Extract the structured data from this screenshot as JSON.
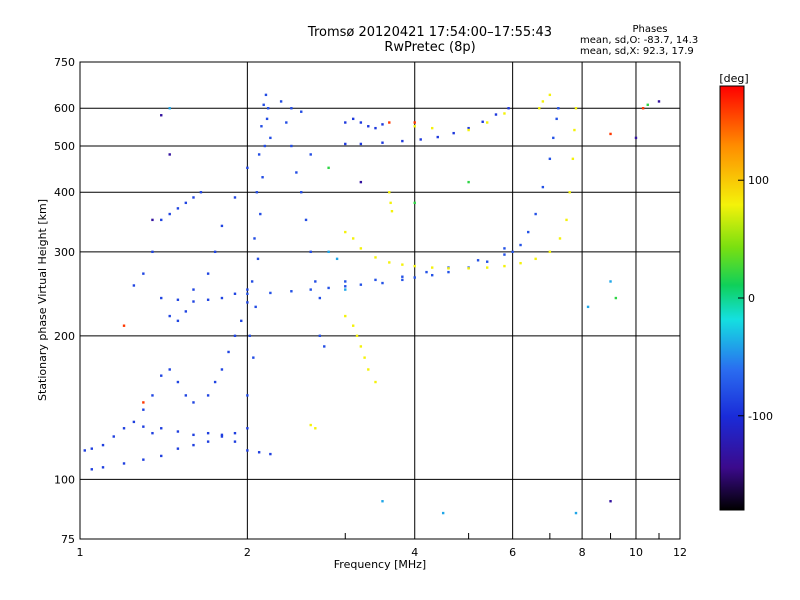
{
  "header": {
    "title_line1": "Tromsø 20120421 17:54:00–17:55:43",
    "title_line2": "RwPretec (8p)"
  },
  "phases": {
    "heading": "Phases",
    "line_o": "mean, sd,O:  -83.7, 14.3",
    "line_x": "mean, sd,X:  92.3, 17.9"
  },
  "colorbar": {
    "unit_label": "[deg]",
    "ticks": [
      100,
      0,
      -100
    ],
    "range": [
      -180,
      180
    ]
  },
  "chart_data": {
    "type": "scatter",
    "xlabel": "Frequency [MHz]",
    "ylabel": "Stationary phase Virtual Height [km]",
    "xscale": "log",
    "yscale": "log",
    "xlim": [
      1,
      12
    ],
    "ylim": [
      75,
      750
    ],
    "xticks": [
      1,
      2,
      4,
      6,
      8,
      10,
      12
    ],
    "yticks": [
      75,
      100,
      200,
      300,
      400,
      500,
      600,
      750
    ],
    "grid": true,
    "series": [
      {
        "color_value": -95,
        "points": [
          [
            1.02,
            115
          ],
          [
            1.05,
            116
          ],
          [
            1.1,
            118
          ],
          [
            1.15,
            123
          ],
          [
            1.2,
            128
          ],
          [
            1.25,
            132
          ],
          [
            1.3,
            129
          ],
          [
            1.35,
            125
          ],
          [
            1.4,
            128
          ],
          [
            1.5,
            126
          ],
          [
            1.6,
            124
          ],
          [
            1.7,
            125
          ],
          [
            1.8,
            124
          ],
          [
            1.9,
            120
          ],
          [
            2.0,
            115
          ],
          [
            2.1,
            114
          ],
          [
            2.2,
            113
          ],
          [
            1.05,
            105
          ],
          [
            1.1,
            106
          ],
          [
            1.2,
            108
          ],
          [
            1.3,
            110
          ],
          [
            1.4,
            112
          ],
          [
            1.5,
            116
          ],
          [
            1.6,
            118
          ],
          [
            1.7,
            120
          ],
          [
            1.8,
            123
          ],
          [
            1.9,
            125
          ],
          [
            2.0,
            128
          ]
        ]
      },
      {
        "color_value": -90,
        "points": [
          [
            1.3,
            140
          ],
          [
            1.35,
            150
          ],
          [
            1.4,
            165
          ],
          [
            1.45,
            170
          ],
          [
            1.5,
            160
          ],
          [
            1.55,
            150
          ],
          [
            1.6,
            145
          ],
          [
            1.7,
            150
          ],
          [
            1.75,
            160
          ],
          [
            1.8,
            170
          ],
          [
            1.85,
            185
          ],
          [
            1.9,
            200
          ],
          [
            1.95,
            215
          ],
          [
            2.0,
            235
          ],
          [
            1.4,
            240
          ],
          [
            1.5,
            238
          ],
          [
            1.6,
            236
          ],
          [
            1.7,
            238
          ],
          [
            1.8,
            240
          ],
          [
            1.9,
            245
          ],
          [
            2.0,
            250
          ],
          [
            1.45,
            220
          ],
          [
            1.5,
            215
          ],
          [
            1.55,
            225
          ],
          [
            1.6,
            250
          ],
          [
            1.7,
            270
          ],
          [
            1.75,
            300
          ],
          [
            1.8,
            340
          ],
          [
            1.9,
            390
          ],
          [
            2.0,
            450
          ],
          [
            1.65,
            400
          ],
          [
            1.6,
            390
          ],
          [
            1.55,
            380
          ],
          [
            1.5,
            370
          ],
          [
            1.45,
            360
          ],
          [
            1.4,
            350
          ],
          [
            1.35,
            300
          ],
          [
            1.3,
            270
          ],
          [
            1.25,
            255
          ]
        ]
      },
      {
        "color_value": -85,
        "points": [
          [
            2.0,
            150
          ],
          [
            2.02,
            200
          ],
          [
            2.04,
            260
          ],
          [
            2.06,
            320
          ],
          [
            2.08,
            400
          ],
          [
            2.1,
            480
          ],
          [
            2.12,
            550
          ],
          [
            2.14,
            610
          ],
          [
            2.16,
            640
          ],
          [
            2.18,
            600
          ],
          [
            2.2,
            520
          ],
          [
            2.05,
            180
          ],
          [
            2.07,
            230
          ],
          [
            2.09,
            290
          ],
          [
            2.11,
            360
          ],
          [
            2.13,
            430
          ],
          [
            2.15,
            500
          ],
          [
            2.17,
            570
          ],
          [
            2.3,
            620
          ],
          [
            2.35,
            560
          ],
          [
            2.4,
            500
          ],
          [
            2.45,
            440
          ],
          [
            2.5,
            400
          ],
          [
            2.55,
            350
          ],
          [
            2.6,
            300
          ],
          [
            2.65,
            260
          ],
          [
            2.7,
            240
          ],
          [
            2.4,
            600
          ],
          [
            2.5,
            590
          ],
          [
            2.6,
            480
          ],
          [
            2.7,
            200
          ],
          [
            2.75,
            190
          ]
        ]
      },
      {
        "color_value": -80,
        "points": [
          [
            2.0,
            245
          ],
          [
            2.2,
            246
          ],
          [
            2.4,
            248
          ],
          [
            2.6,
            250
          ],
          [
            2.8,
            252
          ],
          [
            3.0,
            254
          ],
          [
            3.2,
            256
          ],
          [
            3.5,
            258
          ],
          [
            3.8,
            262
          ],
          [
            4.0,
            265
          ],
          [
            4.3,
            268
          ],
          [
            4.6,
            272
          ],
          [
            5.0,
            278
          ],
          [
            5.4,
            286
          ],
          [
            5.8,
            296
          ],
          [
            6.0,
            300
          ],
          [
            6.2,
            310
          ],
          [
            6.4,
            330
          ],
          [
            6.6,
            360
          ],
          [
            6.8,
            410
          ],
          [
            7.0,
            470
          ],
          [
            7.1,
            520
          ],
          [
            7.2,
            570
          ],
          [
            7.25,
            600
          ],
          [
            3.0,
            260
          ],
          [
            3.4,
            262
          ],
          [
            3.8,
            266
          ],
          [
            4.2,
            272
          ],
          [
            4.6,
            278
          ],
          [
            5.2,
            288
          ],
          [
            5.8,
            305
          ]
        ]
      },
      {
        "color_value": -100,
        "points": [
          [
            3.0,
            505
          ],
          [
            3.2,
            505
          ],
          [
            3.5,
            508
          ],
          [
            3.8,
            512
          ],
          [
            4.1,
            516
          ],
          [
            4.4,
            522
          ],
          [
            4.7,
            532
          ],
          [
            5.0,
            545
          ],
          [
            5.3,
            562
          ],
          [
            5.6,
            582
          ],
          [
            5.9,
            600
          ],
          [
            3.0,
            560
          ],
          [
            3.1,
            570
          ],
          [
            3.2,
            560
          ],
          [
            3.3,
            550
          ],
          [
            3.4,
            545
          ],
          [
            3.5,
            555
          ]
        ]
      },
      {
        "color_value": 80,
        "points": [
          [
            3.0,
            330
          ],
          [
            3.1,
            320
          ],
          [
            3.2,
            305
          ],
          [
            3.4,
            292
          ],
          [
            3.6,
            285
          ],
          [
            3.8,
            282
          ],
          [
            4.0,
            280
          ],
          [
            4.3,
            278
          ],
          [
            4.6,
            277
          ],
          [
            5.0,
            277
          ],
          [
            5.4,
            278
          ],
          [
            5.8,
            280
          ],
          [
            6.2,
            284
          ],
          [
            6.6,
            290
          ],
          [
            7.0,
            300
          ],
          [
            7.3,
            320
          ],
          [
            7.5,
            350
          ],
          [
            7.6,
            400
          ],
          [
            7.7,
            470
          ],
          [
            7.75,
            540
          ],
          [
            7.8,
            600
          ],
          [
            3.0,
            220
          ],
          [
            3.1,
            210
          ],
          [
            3.15,
            200
          ],
          [
            3.2,
            190
          ],
          [
            3.25,
            180
          ],
          [
            3.3,
            170
          ],
          [
            3.4,
            160
          ],
          [
            3.6,
            400
          ],
          [
            3.62,
            380
          ],
          [
            3.64,
            365
          ],
          [
            6.7,
            600
          ],
          [
            6.8,
            620
          ],
          [
            7.0,
            640
          ],
          [
            5.0,
            540
          ],
          [
            5.4,
            560
          ],
          [
            5.8,
            585
          ],
          [
            4.0,
            550
          ],
          [
            4.3,
            545
          ],
          [
            2.6,
            130
          ],
          [
            2.65,
            128
          ]
        ]
      },
      {
        "color_value": -40,
        "points": [
          [
            2.8,
            300
          ],
          [
            2.9,
            290
          ],
          [
            3.0,
            250
          ],
          [
            3.5,
            90
          ],
          [
            4.5,
            85
          ],
          [
            7.8,
            85
          ],
          [
            8.2,
            230
          ],
          [
            9.0,
            260
          ],
          [
            1.45,
            600
          ]
        ]
      },
      {
        "color_value": 20,
        "points": [
          [
            2.8,
            450
          ],
          [
            4.0,
            380
          ],
          [
            5.0,
            420
          ],
          [
            9.2,
            240
          ],
          [
            10.5,
            610
          ]
        ]
      },
      {
        "color_value": -140,
        "points": [
          [
            1.4,
            580
          ],
          [
            1.45,
            480
          ],
          [
            1.35,
            350
          ],
          [
            9.0,
            90
          ],
          [
            10.0,
            520
          ],
          [
            11.0,
            620
          ],
          [
            3.2,
            420
          ]
        ]
      },
      {
        "color_value": 160,
        "points": [
          [
            1.3,
            145
          ],
          [
            3.6,
            560
          ],
          [
            9.0,
            530
          ],
          [
            10.3,
            600
          ],
          [
            4.0,
            560
          ],
          [
            1.2,
            210
          ]
        ]
      }
    ]
  }
}
